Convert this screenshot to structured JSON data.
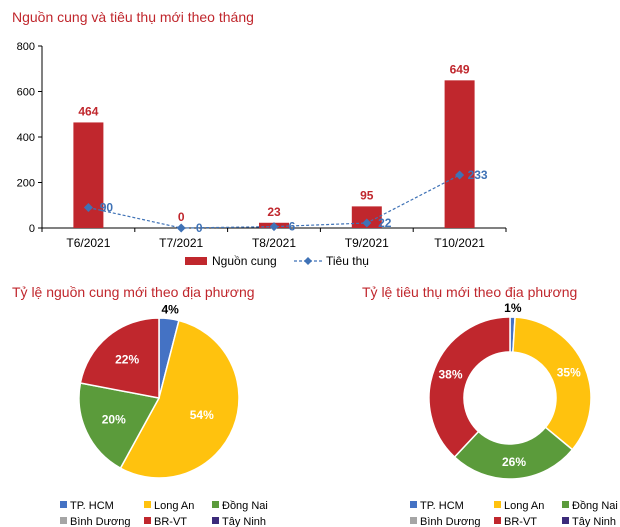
{
  "chart_data": [
    {
      "type": "bar",
      "title": "Nguồn cung và tiêu thụ mới theo tháng",
      "categories": [
        "T6/2021",
        "T7/2021",
        "T8/2021",
        "T9/2021",
        "T10/2021"
      ],
      "ylim": [
        0,
        800
      ],
      "yticks": [
        0,
        200,
        400,
        600,
        800
      ],
      "series": [
        {
          "name": "Nguồn cung",
          "kind": "bar",
          "color": "#c0272d",
          "values": [
            464,
            0,
            23,
            95,
            649
          ]
        },
        {
          "name": "Tiêu thụ",
          "kind": "line",
          "style": "dashed-diamond",
          "color": "#3f72b6",
          "values": [
            90,
            0,
            6,
            22,
            233
          ]
        }
      ],
      "legend_position": "bottom",
      "grid": false
    },
    {
      "type": "pie",
      "title": "Tỷ lệ nguồn cung mới theo địa phương",
      "slices": [
        {
          "label": "TP. HCM",
          "value": 4,
          "text": "4%",
          "color": "#4472c4"
        },
        {
          "label": "Long An",
          "value": 54,
          "text": "54%",
          "color": "#ffc20e"
        },
        {
          "label": "Đồng Nai",
          "value": 20,
          "text": "20%",
          "color": "#5b9b3b"
        },
        {
          "label": "Bình Dương",
          "value": 0,
          "text": "",
          "color": "#a5a5a5"
        },
        {
          "label": "BR-VT",
          "value": 22,
          "text": "22%",
          "color": "#c0272d"
        },
        {
          "label": "Tây Ninh",
          "value": 0,
          "text": "",
          "color": "#3b2a7a"
        }
      ],
      "legend_position": "bottom"
    },
    {
      "type": "pie",
      "donut": true,
      "title": "Tỷ lệ tiêu thụ mới theo địa phương",
      "slices": [
        {
          "label": "TP. HCM",
          "value": 1,
          "text": "1%",
          "color": "#4472c4"
        },
        {
          "label": "Long An",
          "value": 35,
          "text": "35%",
          "color": "#ffc20e"
        },
        {
          "label": "Đồng Nai",
          "value": 26,
          "text": "26%",
          "color": "#5b9b3b"
        },
        {
          "label": "Bình Dương",
          "value": 0,
          "text": "",
          "color": "#a5a5a5"
        },
        {
          "label": "BR-VT",
          "value": 38,
          "text": "38%",
          "color": "#c0272d"
        },
        {
          "label": "Tây Ninh",
          "value": 0,
          "text": "",
          "color": "#3b2a7a"
        }
      ],
      "legend_position": "bottom"
    }
  ]
}
